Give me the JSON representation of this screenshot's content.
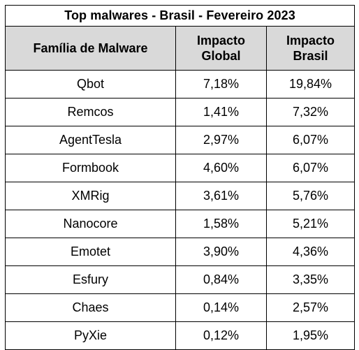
{
  "table": {
    "title": "Top malwares - Brasil - Fevereiro 2023",
    "headers": {
      "family": "Família de Malware",
      "global_line1": "Impacto",
      "global_line2": "Global",
      "brasil_line1": "Impacto",
      "brasil_line2": "Brasil"
    },
    "rows": [
      {
        "family": "Qbot",
        "global": "7,18%",
        "brasil": "19,84%"
      },
      {
        "family": "Remcos",
        "global": "1,41%",
        "brasil": "7,32%"
      },
      {
        "family": "AgentTesla",
        "global": "2,97%",
        "brasil": "6,07%"
      },
      {
        "family": "Formbook",
        "global": "4,60%",
        "brasil": "6,07%"
      },
      {
        "family": "XMRig",
        "global": "3,61%",
        "brasil": "5,76%"
      },
      {
        "family": "Nanocore",
        "global": "1,58%",
        "brasil": "5,21%"
      },
      {
        "family": "Emotet",
        "global": "3,90%",
        "brasil": "4,36%"
      },
      {
        "family": "Esfury",
        "global": "0,84%",
        "brasil": "3,35%"
      },
      {
        "family": "Chaes",
        "global": "0,14%",
        "brasil": "2,57%"
      },
      {
        "family": "PyXie",
        "global": "0,12%",
        "brasil": "1,95%"
      }
    ]
  }
}
